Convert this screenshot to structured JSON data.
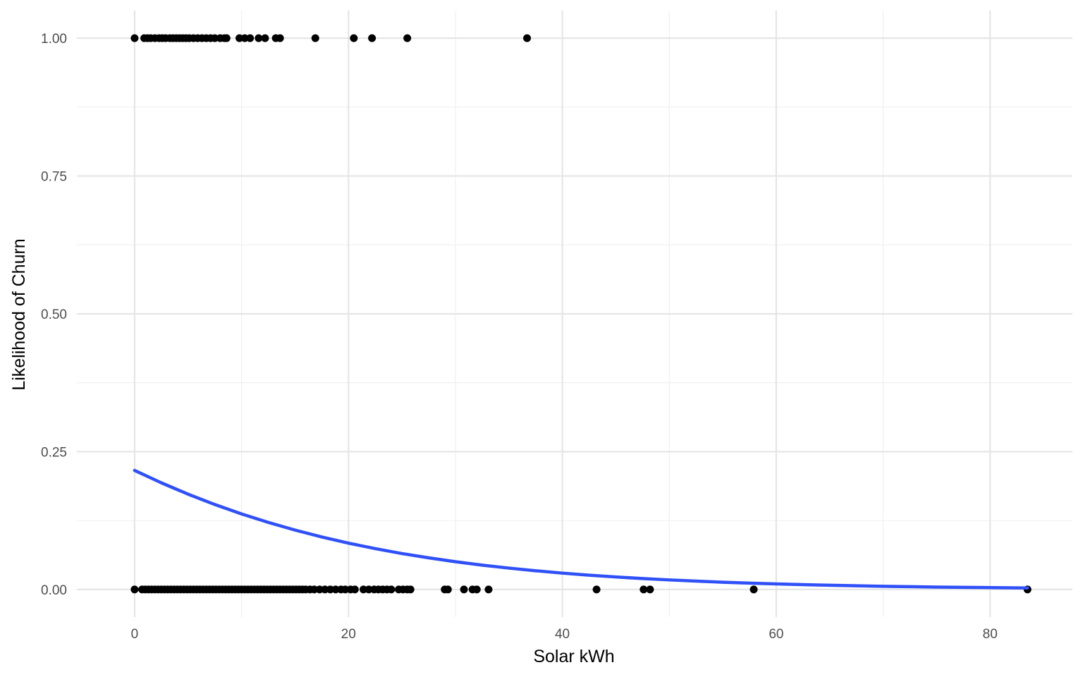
{
  "chart_data": {
    "type": "scatter",
    "xlabel": "Solar kWh",
    "ylabel": "Likelihood of Churn",
    "xlim": [
      -5.4,
      87.7
    ],
    "ylim": [
      -0.05,
      1.05
    ],
    "x_ticks": [
      0,
      20,
      40,
      60,
      80
    ],
    "x_tick_labels": [
      "0",
      "20",
      "40",
      "60",
      "80"
    ],
    "x_minor_ticks": [
      10,
      30,
      50,
      70
    ],
    "y_ticks": [
      0,
      0.25,
      0.5,
      0.75,
      1.0
    ],
    "y_tick_labels": [
      "0.00",
      "0.25",
      "0.50",
      "0.75",
      "1.00"
    ],
    "y_minor_ticks": [
      0.125,
      0.375,
      0.625,
      0.875
    ],
    "grid": true,
    "legend": "none",
    "colors": {
      "points": "#000000",
      "fit_line": "#3050f8",
      "grid": "#e5e5e5"
    },
    "series": [
      {
        "kind": "points",
        "points": [
          {
            "x": 0.0,
            "y": 1
          },
          {
            "x": 0.9,
            "y": 1
          },
          {
            "x": 1.2,
            "y": 1
          },
          {
            "x": 1.5,
            "y": 1
          },
          {
            "x": 1.9,
            "y": 1
          },
          {
            "x": 2.3,
            "y": 1
          },
          {
            "x": 2.6,
            "y": 1
          },
          {
            "x": 2.9,
            "y": 1
          },
          {
            "x": 3.3,
            "y": 1
          },
          {
            "x": 3.6,
            "y": 1
          },
          {
            "x": 3.9,
            "y": 1
          },
          {
            "x": 4.2,
            "y": 1
          },
          {
            "x": 4.5,
            "y": 1
          },
          {
            "x": 4.8,
            "y": 1
          },
          {
            "x": 5.1,
            "y": 1
          },
          {
            "x": 5.5,
            "y": 1
          },
          {
            "x": 5.9,
            "y": 1
          },
          {
            "x": 6.3,
            "y": 1
          },
          {
            "x": 6.7,
            "y": 1
          },
          {
            "x": 7.1,
            "y": 1
          },
          {
            "x": 7.5,
            "y": 1
          },
          {
            "x": 8.0,
            "y": 1
          },
          {
            "x": 8.4,
            "y": 1
          },
          {
            "x": 8.6,
            "y": 1
          },
          {
            "x": 9.8,
            "y": 1
          },
          {
            "x": 10.3,
            "y": 1
          },
          {
            "x": 10.8,
            "y": 1
          },
          {
            "x": 11.6,
            "y": 1
          },
          {
            "x": 12.2,
            "y": 1
          },
          {
            "x": 13.2,
            "y": 1
          },
          {
            "x": 13.6,
            "y": 1
          },
          {
            "x": 16.9,
            "y": 1
          },
          {
            "x": 20.5,
            "y": 1
          },
          {
            "x": 22.2,
            "y": 1
          },
          {
            "x": 25.5,
            "y": 1
          },
          {
            "x": 36.7,
            "y": 1
          },
          {
            "x": 0.0,
            "y": 0
          },
          {
            "x": 0.7,
            "y": 0
          },
          {
            "x": 1.0,
            "y": 0
          },
          {
            "x": 1.3,
            "y": 0
          },
          {
            "x": 1.6,
            "y": 0
          },
          {
            "x": 1.9,
            "y": 0
          },
          {
            "x": 2.2,
            "y": 0
          },
          {
            "x": 2.5,
            "y": 0
          },
          {
            "x": 2.8,
            "y": 0
          },
          {
            "x": 3.1,
            "y": 0
          },
          {
            "x": 3.4,
            "y": 0
          },
          {
            "x": 3.7,
            "y": 0
          },
          {
            "x": 4.0,
            "y": 0
          },
          {
            "x": 4.3,
            "y": 0
          },
          {
            "x": 4.6,
            "y": 0
          },
          {
            "x": 4.9,
            "y": 0
          },
          {
            "x": 5.2,
            "y": 0
          },
          {
            "x": 5.5,
            "y": 0
          },
          {
            "x": 5.8,
            "y": 0
          },
          {
            "x": 6.1,
            "y": 0
          },
          {
            "x": 6.4,
            "y": 0
          },
          {
            "x": 6.7,
            "y": 0
          },
          {
            "x": 7.0,
            "y": 0
          },
          {
            "x": 7.3,
            "y": 0
          },
          {
            "x": 7.6,
            "y": 0
          },
          {
            "x": 7.9,
            "y": 0
          },
          {
            "x": 8.2,
            "y": 0
          },
          {
            "x": 8.5,
            "y": 0
          },
          {
            "x": 8.8,
            "y": 0
          },
          {
            "x": 9.1,
            "y": 0
          },
          {
            "x": 9.4,
            "y": 0
          },
          {
            "x": 9.7,
            "y": 0
          },
          {
            "x": 10.0,
            "y": 0
          },
          {
            "x": 10.3,
            "y": 0
          },
          {
            "x": 10.6,
            "y": 0
          },
          {
            "x": 10.9,
            "y": 0
          },
          {
            "x": 11.2,
            "y": 0
          },
          {
            "x": 11.5,
            "y": 0
          },
          {
            "x": 11.8,
            "y": 0
          },
          {
            "x": 12.1,
            "y": 0
          },
          {
            "x": 12.4,
            "y": 0
          },
          {
            "x": 12.7,
            "y": 0
          },
          {
            "x": 13.0,
            "y": 0
          },
          {
            "x": 13.3,
            "y": 0
          },
          {
            "x": 13.6,
            "y": 0
          },
          {
            "x": 13.9,
            "y": 0
          },
          {
            "x": 14.2,
            "y": 0
          },
          {
            "x": 14.5,
            "y": 0
          },
          {
            "x": 14.8,
            "y": 0
          },
          {
            "x": 15.1,
            "y": 0
          },
          {
            "x": 15.4,
            "y": 0
          },
          {
            "x": 15.7,
            "y": 0
          },
          {
            "x": 16.0,
            "y": 0
          },
          {
            "x": 16.4,
            "y": 0
          },
          {
            "x": 16.8,
            "y": 0
          },
          {
            "x": 17.3,
            "y": 0
          },
          {
            "x": 17.8,
            "y": 0
          },
          {
            "x": 18.3,
            "y": 0
          },
          {
            "x": 18.8,
            "y": 0
          },
          {
            "x": 19.3,
            "y": 0
          },
          {
            "x": 19.7,
            "y": 0
          },
          {
            "x": 20.2,
            "y": 0
          },
          {
            "x": 20.6,
            "y": 0
          },
          {
            "x": 21.4,
            "y": 0
          },
          {
            "x": 21.9,
            "y": 0
          },
          {
            "x": 22.4,
            "y": 0
          },
          {
            "x": 22.8,
            "y": 0
          },
          {
            "x": 23.2,
            "y": 0
          },
          {
            "x": 23.6,
            "y": 0
          },
          {
            "x": 24.0,
            "y": 0
          },
          {
            "x": 24.7,
            "y": 0
          },
          {
            "x": 25.1,
            "y": 0
          },
          {
            "x": 25.5,
            "y": 0
          },
          {
            "x": 25.8,
            "y": 0
          },
          {
            "x": 29.0,
            "y": 0
          },
          {
            "x": 29.3,
            "y": 0
          },
          {
            "x": 30.8,
            "y": 0
          },
          {
            "x": 31.6,
            "y": 0
          },
          {
            "x": 32.0,
            "y": 0
          },
          {
            "x": 33.1,
            "y": 0
          },
          {
            "x": 43.2,
            "y": 0
          },
          {
            "x": 47.6,
            "y": 0
          },
          {
            "x": 48.2,
            "y": 0
          },
          {
            "x": 57.9,
            "y": 0
          },
          {
            "x": 83.5,
            "y": 0
          }
        ]
      },
      {
        "kind": "line",
        "points": [
          {
            "x": 0.0,
            "y": 0.216
          },
          {
            "x": 2.5,
            "y": 0.1935
          },
          {
            "x": 5.0,
            "y": 0.1729
          },
          {
            "x": 7.5,
            "y": 0.1541
          },
          {
            "x": 10.0,
            "y": 0.1371
          },
          {
            "x": 12.5,
            "y": 0.1217
          },
          {
            "x": 15.0,
            "y": 0.1078
          },
          {
            "x": 17.5,
            "y": 0.0953
          },
          {
            "x": 20.0,
            "y": 0.0841
          },
          {
            "x": 22.5,
            "y": 0.0741
          },
          {
            "x": 25.0,
            "y": 0.0652
          },
          {
            "x": 27.5,
            "y": 0.0574
          },
          {
            "x": 30.0,
            "y": 0.0504
          },
          {
            "x": 32.5,
            "y": 0.0442
          },
          {
            "x": 35.0,
            "y": 0.0388
          },
          {
            "x": 37.5,
            "y": 0.034
          },
          {
            "x": 40.0,
            "y": 0.0297
          },
          {
            "x": 42.5,
            "y": 0.026
          },
          {
            "x": 45.0,
            "y": 0.0227
          },
          {
            "x": 47.5,
            "y": 0.0199
          },
          {
            "x": 50.0,
            "y": 0.0174
          },
          {
            "x": 52.5,
            "y": 0.0152
          },
          {
            "x": 55.0,
            "y": 0.0132
          },
          {
            "x": 57.5,
            "y": 0.0116
          },
          {
            "x": 60.0,
            "y": 0.0101
          },
          {
            "x": 62.5,
            "y": 0.0088
          },
          {
            "x": 65.0,
            "y": 0.0077
          },
          {
            "x": 67.5,
            "y": 0.0067
          },
          {
            "x": 70.0,
            "y": 0.0058
          },
          {
            "x": 72.5,
            "y": 0.0051
          },
          {
            "x": 75.0,
            "y": 0.0044
          },
          {
            "x": 77.5,
            "y": 0.0039
          },
          {
            "x": 80.0,
            "y": 0.0034
          },
          {
            "x": 83.5,
            "y": 0.0028
          }
        ]
      }
    ]
  }
}
